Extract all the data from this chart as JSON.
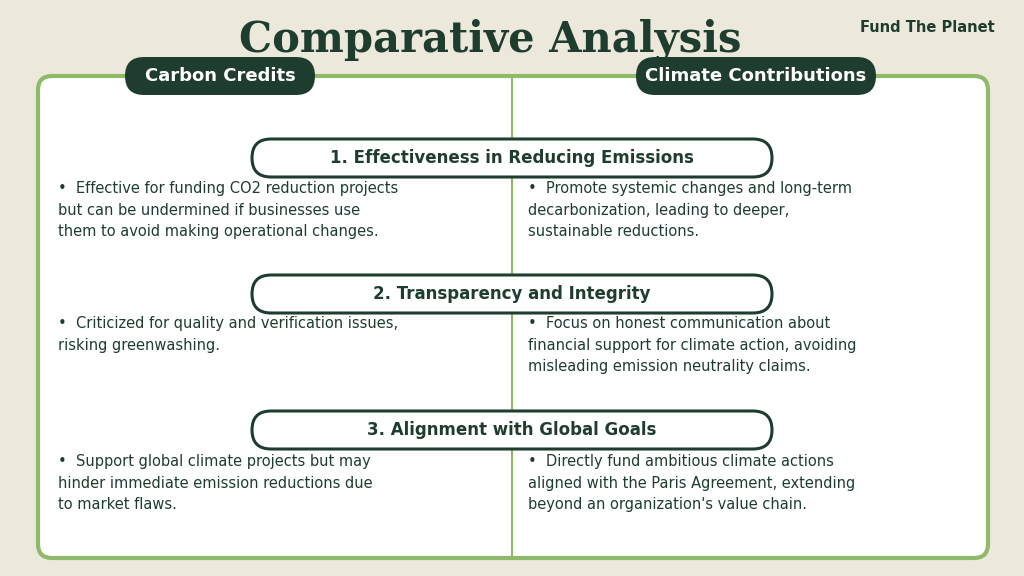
{
  "title": "Comparative Analysis",
  "brand": "Fund The Planet",
  "bg_color": "#ede8dc",
  "dark_green": "#1e3d2f",
  "light_green_border": "#8fba6a",
  "white": "#ffffff",
  "header_left": "Carbon Credits",
  "header_right": "Climate Contributions",
  "categories": [
    "1. Effectiveness in Reducing Emissions",
    "2. Transparency and Integrity",
    "3. Alignment with Global Goals"
  ],
  "left_points": [
    "Effective for funding CO2 reduction projects\nbut can be undermined if businesses use\nthem to avoid making operational changes.",
    "Criticized for quality and verification issues,\nrisking greenwashing.",
    "Support global climate projects but may\nhinder immediate emission reductions due\nto market flaws."
  ],
  "right_points": [
    "Promote systemic changes and long-term\ndecarbonization, leading to deeper,\nsustainable reductions.",
    "Focus on honest communication about\nfinancial support for climate action, avoiding\nmisleading emission neutrality claims.",
    "Directly fund ambitious climate actions\naligned with the Paris Agreement, extending\nbeyond an organization's value chain."
  ],
  "figsize": [
    10.24,
    5.76
  ],
  "dpi": 100
}
